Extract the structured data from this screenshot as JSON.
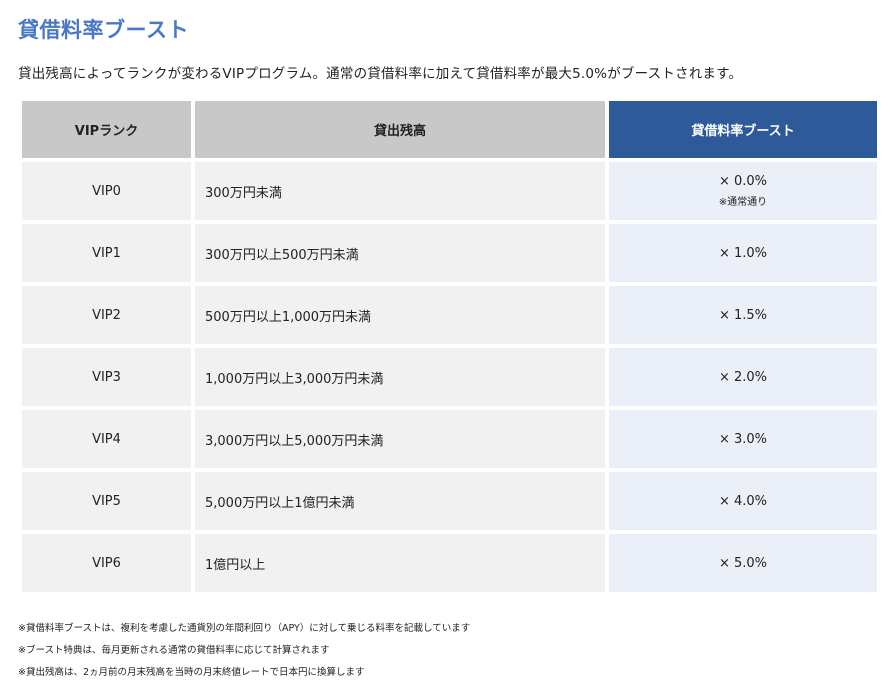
{
  "title": "貸借料率ブースト",
  "description": "貸出残高によってランクが変わるVIPプログラム。通常の貸借料率に加えて貸借料率が最大5.0%がブーストされます。",
  "table": {
    "headers": {
      "rank": "VIPランク",
      "balance": "貸出残高",
      "boost": "貸借料率ブースト"
    },
    "rows": [
      {
        "rank": "VIP0",
        "balance": "300万円未満",
        "boost": "× 0.0%",
        "note": "※通常通り"
      },
      {
        "rank": "VIP1",
        "balance": "300万円以上500万円未満",
        "boost": "× 1.0%"
      },
      {
        "rank": "VIP2",
        "balance": "500万円以上1,000万円未満",
        "boost": "× 1.5%"
      },
      {
        "rank": "VIP3",
        "balance": "1,000万円以上3,000万円未満",
        "boost": "× 2.0%"
      },
      {
        "rank": "VIP4",
        "balance": "3,000万円以上5,000万円未満",
        "boost": "× 3.0%"
      },
      {
        "rank": "VIP5",
        "balance": "5,000万円以上1億円未満",
        "boost": "× 4.0%"
      },
      {
        "rank": "VIP6",
        "balance": "1億円以上",
        "boost": "× 5.0%"
      }
    ]
  },
  "notes": [
    "※貸借料率ブーストは、複利を考慮した通貨別の年間利回り（APY）に対して乗じる料率を記載しています",
    "※ブースト特典は、毎月更新される通常の貸借料率に応じて計算されます",
    "※貸出残高は、2ヵ月前の月末残高を当時の月末終値レートで日本円に換算します"
  ],
  "colors": {
    "title": "#4a78c4",
    "header_gray": "#c8c8c8",
    "header_blue": "#2e5a9a",
    "cell_gray": "#f1f1f1",
    "cell_blue": "#eaeff8"
  }
}
